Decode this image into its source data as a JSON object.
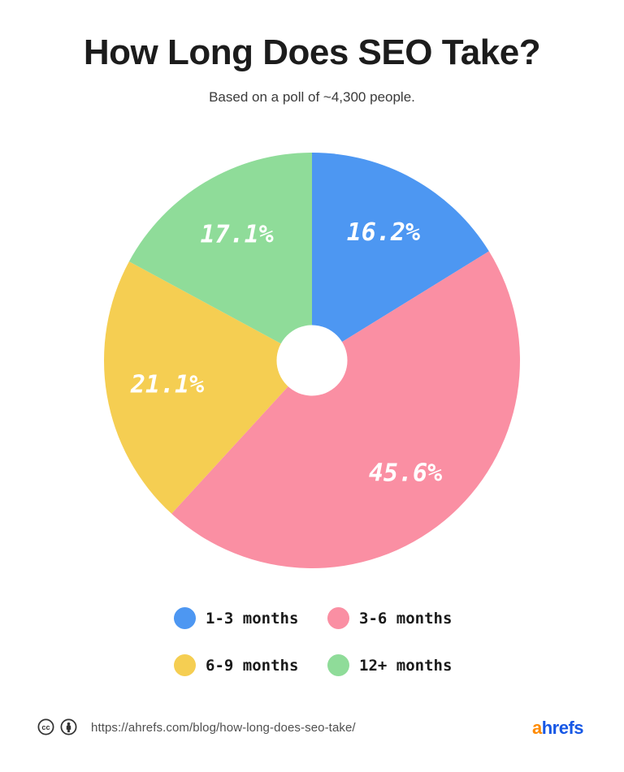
{
  "header": {
    "title": "How Long Does SEO Take?",
    "subtitle": "Based on a poll of ~4,300 people."
  },
  "chart_data": {
    "type": "pie",
    "title": "How Long Does SEO Take?",
    "subtitle": "Based on a poll of ~4,300 people.",
    "categories": [
      "1-3 months",
      "3-6 months",
      "6-9 months",
      "12+ months"
    ],
    "values": [
      16.2,
      45.6,
      21.1,
      17.1
    ],
    "colors": [
      "#4D97F2",
      "#FA8FA3",
      "#F5CE52",
      "#8FDC99"
    ],
    "unit": "%",
    "slice_labels": [
      "16.2%",
      "45.6%",
      "21.1%",
      "17.1%"
    ],
    "slice_label_color": "#FFFFFF",
    "start_angle_deg": 0,
    "direction": "clockwise",
    "donut_hole_ratio": 0.17,
    "legend_position": "bottom"
  },
  "legend": {
    "items": [
      {
        "label": "1-3 months",
        "color": "#4D97F2"
      },
      {
        "label": "3-6 months",
        "color": "#FA8FA3"
      },
      {
        "label": "6-9 months",
        "color": "#F5CE52"
      },
      {
        "label": "12+ months",
        "color": "#8FDC99"
      }
    ]
  },
  "footer": {
    "icons": [
      "cc-icon",
      "attribution-icon"
    ],
    "icon_color": "#333333",
    "url": "https://ahrefs.com/blog/how-long-does-seo-take/",
    "logo": {
      "prefix": "a",
      "suffix": "hrefs",
      "prefix_color": "#FF8A00",
      "suffix_color": "#1657E5"
    }
  }
}
